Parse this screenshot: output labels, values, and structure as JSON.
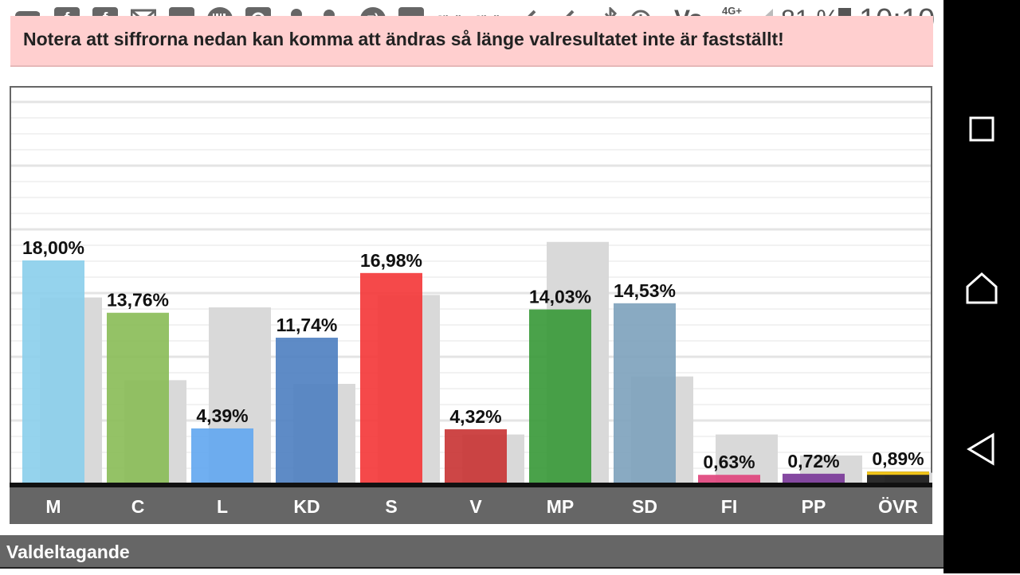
{
  "status_bar": {
    "icons": [
      "chat-icon",
      "facebook-icon",
      "facebook-icon",
      "gmail-icon",
      "app-icon",
      "barcode-icon",
      "map-icon",
      "keyhole-icon",
      "wrench-icon",
      "emoji-icon",
      "news-icon",
      "sibylla-icon",
      "sibylla-icon",
      "check-icon",
      "check-icon",
      "bluetooth-icon",
      "alarm-icon",
      "volte-icon",
      "signal-icon",
      "battery-icon"
    ],
    "sibylla_label": "Sibylla",
    "network": "4G+",
    "volte": "Vo",
    "battery": "81 %",
    "time": "10:10"
  },
  "notice": {
    "text": "Notera att siffrorna nedan kan komma att ändras så länge valresultatet inte är fastställt!"
  },
  "chart_data": {
    "type": "bar",
    "categories": [
      "M",
      "C",
      "L",
      "KD",
      "S",
      "V",
      "MP",
      "SD",
      "FI",
      "PP",
      "ÖVR"
    ],
    "series": [
      {
        "values": [
          18.0,
          13.76,
          4.39,
          11.74,
          16.98,
          4.32,
          14.03,
          14.53,
          0.63,
          0.72,
          0.89
        ],
        "labels": [
          "18,00%",
          "13,76%",
          "4,39%",
          "11,74%",
          "16,98%",
          "4,32%",
          "14,03%",
          "14,53%",
          "0,63%",
          "0,72%",
          "0,89%"
        ],
        "colors": [
          "#8ccfec",
          "#8bbd59",
          "#64a8f0",
          "#5081c1",
          "#f4393b",
          "#c93636",
          "#3b9a3b",
          "#7fa3bd",
          "#e0457d",
          "#7b3a99",
          "#1a1a1a"
        ]
      },
      {
        "values": [
          15.0,
          8.3,
          14.2,
          8.0,
          15.2,
          3.9,
          19.5,
          8.6,
          3.9,
          2.2,
          0.8
        ],
        "color": "#d9d9d9"
      }
    ],
    "ylim": [
      0,
      32
    ],
    "grid": true,
    "xlabel": "",
    "ylabel": ""
  },
  "colors": {
    "notice_bg": "#ffcfcf",
    "axis_band": "#666666",
    "nav_bg": "#000000",
    "others_stripe": "#f0c419"
  },
  "turnout": {
    "label": "Valdeltagande"
  },
  "nav": {
    "buttons": [
      "recents-icon",
      "home-icon",
      "back-icon"
    ]
  }
}
